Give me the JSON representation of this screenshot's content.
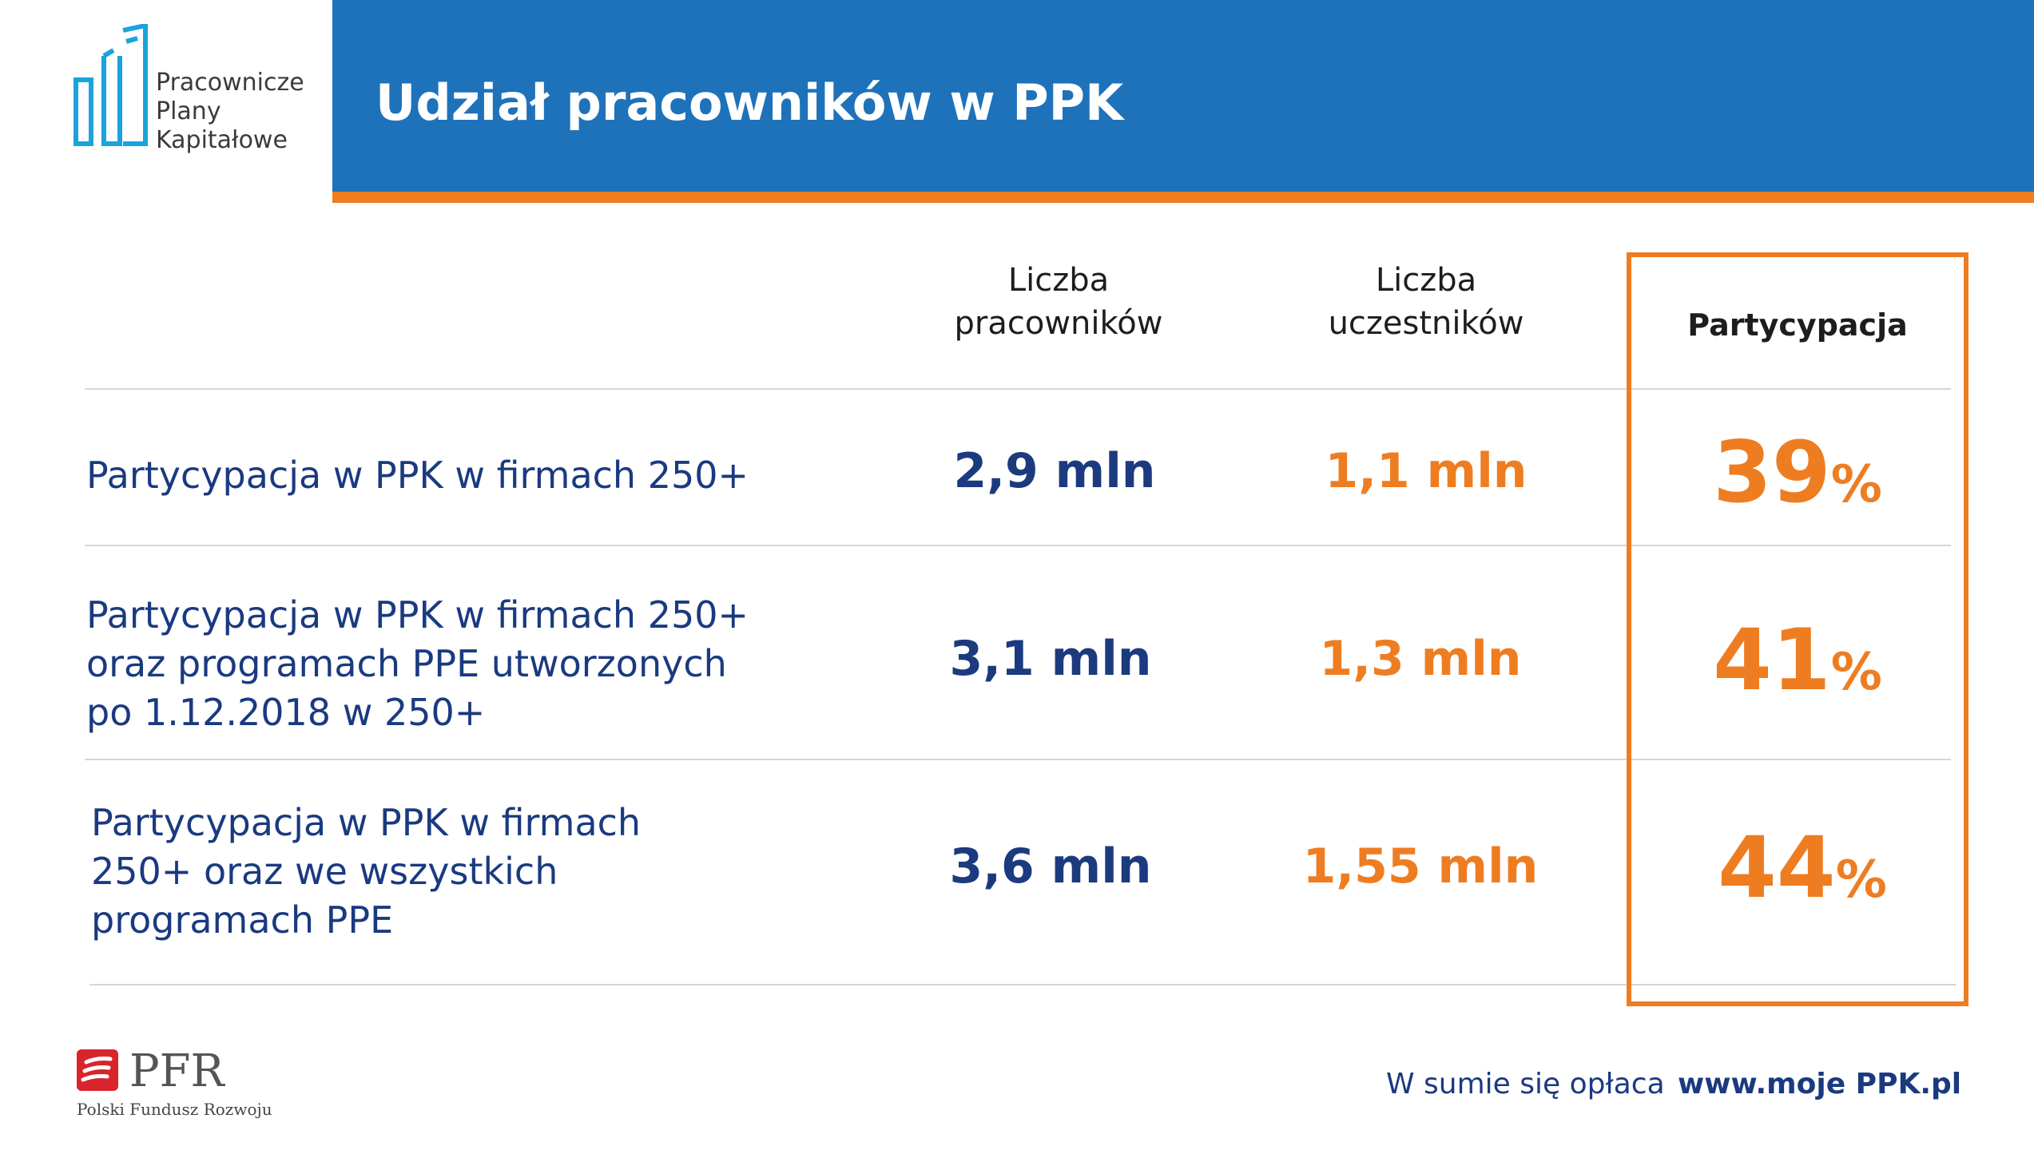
{
  "logo": {
    "lines": [
      "Pracownicze",
      "Plany",
      "Kapitałowe"
    ]
  },
  "header": {
    "title": "Udział pracowników w PPK"
  },
  "table": {
    "columns": [
      {
        "lines": [
          "Liczba",
          "pracowników"
        ]
      },
      {
        "lines": [
          "Liczba",
          "uczestników"
        ]
      },
      {
        "lines": [
          "Partycypacja"
        ]
      }
    ],
    "rows": [
      {
        "label_lines": [
          "Partycypacja w PPK w firmach 250+"
        ],
        "employees": "2,9 mln",
        "participants": "1,1 mln",
        "pct_number": "39",
        "pct_sign": "%"
      },
      {
        "label_lines": [
          "Partycypacja w PPK w firmach 250+",
          "oraz programach PPE utworzonych",
          "po 1.12.2018 w 250+"
        ],
        "employees": "3,1 mln",
        "participants": "1,3 mln",
        "pct_number": "41",
        "pct_sign": "%"
      },
      {
        "label_lines": [
          "Partycypacja w PPK w firmach",
          "250+ oraz we wszystkich",
          "programach PPE"
        ],
        "employees": "3,6 mln",
        "participants": "1,55 mln",
        "pct_number": "44",
        "pct_sign": "%"
      }
    ]
  },
  "footer": {
    "pfr_logo_text": "PFR",
    "pfr_subtitle": "Polski Fundusz Rozwoju",
    "tagline": "W sumie się opłaca",
    "url": "www.moje PPK.pl"
  },
  "colors": {
    "header_blue": "#1e72ba",
    "accent_orange": "#f07d1f",
    "navy_text": "#1c3a7e",
    "pfr_red": "#d9242b"
  }
}
